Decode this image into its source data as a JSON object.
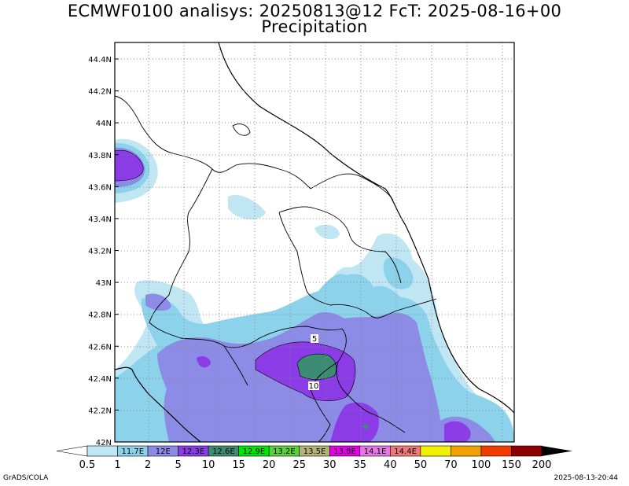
{
  "title_line1": "ECMWF0100 analisys: 20250813@12 FcT: 2025-08-16+00",
  "title_line2": "Precipitation",
  "lat_labels": [
    "44.4N",
    "44.2N",
    "44N",
    "43.8N",
    "43.6N",
    "43.4N",
    "43.2N",
    "43N",
    "42.8N",
    "42.6N",
    "42.4N",
    "42.2N",
    "42N"
  ],
  "lat_values": [
    44.4,
    44.2,
    44.0,
    43.8,
    43.6,
    43.4,
    43.2,
    43.0,
    42.8,
    42.6,
    42.4,
    42.2,
    42.0
  ],
  "lon_labels": [
    "11.7E",
    "12E",
    "12.3E",
    "12.6E",
    "12.9E",
    "13.2E",
    "13.5E",
    "13.8E",
    "14.1E",
    "14.4E"
  ],
  "colorbar_levels": [
    "0.5",
    "1",
    "2",
    "5",
    "10",
    "15",
    "20",
    "25",
    "30",
    "35",
    "40",
    "50",
    "70",
    "100",
    "150",
    "200"
  ],
  "colorbar_colors": [
    "#c0e6f4",
    "#8cd2ea",
    "#8c8ce6",
    "#8c3ce6",
    "#3c8c73",
    "#00e600",
    "#5ad23c",
    "#b4b478",
    "#e600e6",
    "#e678e6",
    "#f07878",
    "#f0f000",
    "#f0a000",
    "#f03c00",
    "#8c0000"
  ],
  "contour_labels": {
    "low": "5",
    "high": "10"
  },
  "footer_left": "GrADS/COLA",
  "footer_right": "2025-08-13-20:44"
}
